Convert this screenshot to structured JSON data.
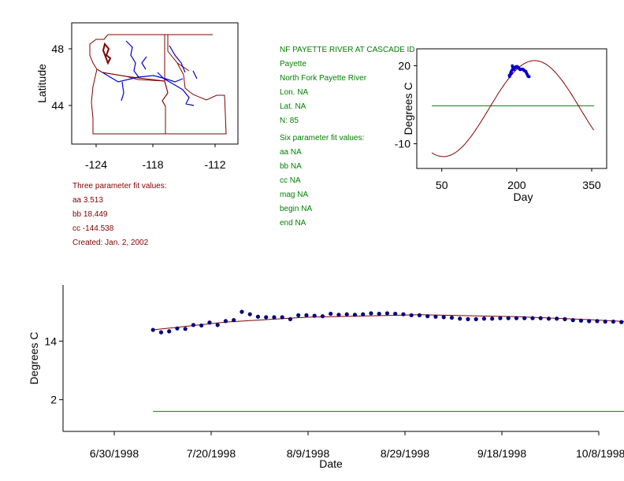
{
  "colors": {
    "red": "#800000",
    "green": "#008000",
    "blue": "#0000cc",
    "point": "#000080",
    "black": "#000000"
  },
  "station_info": {
    "title": "NF PAYETTE RIVER AT CASCADE ID",
    "lines": [
      "Payette",
      "North Fork Payette River",
      "Lon. NA",
      "Lat. NA",
      "N: 85"
    ],
    "six_header": "Six parameter fit values:",
    "six_lines": [
      "aa NA",
      "bb NA",
      "cc NA",
      "mag NA",
      "begin NA",
      "end NA"
    ]
  },
  "three_param": {
    "header": "Three parameter fit values:",
    "lines": [
      "aa 3.513",
      "bb 18.449",
      "cc -144.538"
    ],
    "created": "Created:   Jan. 2, 2002"
  },
  "chart_data": [
    {
      "type": "map",
      "ylabel": "Latitude",
      "xticks": [
        "-124",
        "-118",
        "-112"
      ],
      "yticks": [
        "48",
        "44"
      ],
      "xlim": [
        -125.7,
        -109.3
      ],
      "ylim": [
        41.1,
        49.9
      ]
    },
    {
      "type": "line",
      "xlabel": "Day",
      "ylabel": "Degrees C",
      "xticks": [
        50,
        200,
        350
      ],
      "yticks": [
        20,
        -10
      ],
      "xlim": [
        0,
        380
      ],
      "ylim": [
        -19.5,
        26.5
      ],
      "fit": {
        "aa": 3.513,
        "bb": 18.449,
        "cc": -144.538,
        "day_start": 30,
        "day_end": 355
      },
      "hline": 4.6,
      "observed_day_range": [
        185,
        225
      ]
    },
    {
      "type": "scatter",
      "xlabel": "Date",
      "ylabel": "Degrees C",
      "xticks": [
        "6/30/1998",
        "7/20/1998",
        "8/9/1998",
        "8/29/1998",
        "9/18/1998",
        "10/8/1998"
      ],
      "yticks": [
        14,
        2
      ],
      "ylim": [
        -4.5,
        25.5
      ],
      "hline": -0.4,
      "start_date": "7/8/1998",
      "observed": [
        16.3,
        15.8,
        16.0,
        16.6,
        16.5,
        17.3,
        17.2,
        17.8,
        17.3,
        18.1,
        18.3,
        20.0,
        19.5,
        19.0,
        18.9,
        18.9,
        18.9,
        18.5,
        19.3,
        19.3,
        19.2,
        19.1,
        19.6,
        19.4,
        19.5,
        19.4,
        19.5,
        19.7,
        19.6,
        19.7,
        19.6,
        19.5,
        19.3,
        19.3,
        19.1,
        19.0,
        18.9,
        18.8,
        18.6,
        18.5,
        18.5,
        18.6,
        18.6,
        18.7,
        18.7,
        18.7,
        18.7,
        18.7,
        18.7,
        18.6,
        18.6,
        18.5,
        18.3,
        18.2,
        18.1,
        18.1,
        18.0,
        18.0,
        17.9,
        17.9,
        17.8,
        17.5,
        17.2,
        17.0,
        16.8,
        16.6,
        16.4,
        16.2,
        15.9,
        15.9,
        15.8,
        15.8,
        15.8
      ],
      "fit_line": [
        [
          0,
          16.3
        ],
        [
          15,
          17.9
        ],
        [
          32,
          18.9
        ],
        [
          55,
          19.4
        ],
        [
          75,
          19.0
        ],
        [
          90,
          18.4
        ],
        [
          105,
          17.6
        ],
        [
          120,
          15.7
        ]
      ]
    }
  ]
}
